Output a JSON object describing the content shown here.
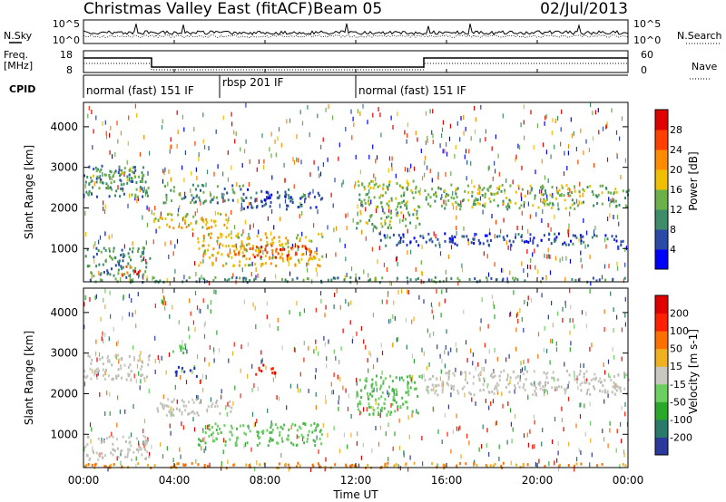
{
  "header": {
    "station": "Christmas Valley East (fitACF)",
    "beam": "Beam 05",
    "date": "02/Jul/2013"
  },
  "left_labels": {
    "nsky": "N.Sky",
    "freq": "Freq.",
    "freq_unit": "[MHz]",
    "cpid": "CPID"
  },
  "right_labels": {
    "nsearch": "N.Search",
    "nave": "Nave"
  },
  "noise_axis": {
    "top": "10^5",
    "bottom": "10^0"
  },
  "freq_axis": {
    "left_ticks": [
      "18",
      "8"
    ],
    "right_ticks": [
      "60",
      "0"
    ]
  },
  "cpid_segments": [
    {
      "label": "normal (fast) 151 IF",
      "start_h": 0,
      "end_h": 6
    },
    {
      "label": "rbsp 201 IF",
      "start_h": 6,
      "end_h": 12
    },
    {
      "label": "normal (fast) 151 IF",
      "start_h": 12,
      "end_h": 24
    }
  ],
  "x_axis": {
    "label": "Time UT",
    "ticks": [
      "00:00",
      "04:00",
      "08:00",
      "12:00",
      "16:00",
      "20:00",
      "00:00"
    ]
  },
  "chart_data": [
    {
      "type": "heatmap",
      "title": "Power",
      "ylabel": "Slant Range [km]",
      "y_ticks": [
        1000,
        2000,
        3000,
        4000
      ],
      "ylim": [
        180,
        4600
      ],
      "x_range_hours": [
        0,
        24
      ],
      "colorbar": {
        "label": "Power [dB]",
        "ticks": [
          "4",
          "8",
          "12",
          "16",
          "20",
          "24",
          "28"
        ],
        "colors": [
          "#0000ff",
          "#2a4aa8",
          "#3d8c6a",
          "#6cb04a",
          "#f0c000",
          "#ff8c00",
          "#ff4000",
          "#e00000"
        ]
      },
      "regions": [
        {
          "t": [
            0.0,
            2.9
          ],
          "r": [
            2300,
            3100
          ],
          "level": 2
        },
        {
          "t": [
            0.2,
            2.6
          ],
          "r": [
            2650,
            2950
          ],
          "level": 3
        },
        {
          "t": [
            0.0,
            2.9
          ],
          "r": [
            350,
            1050
          ],
          "level": 2
        },
        {
          "t": [
            1.5,
            2.5
          ],
          "r": [
            350,
            600
          ],
          "level": 6
        },
        {
          "t": [
            3.0,
            6.5
          ],
          "r": [
            1500,
            1900
          ],
          "level": 4
        },
        {
          "t": [
            5.0,
            10.5
          ],
          "r": [
            600,
            1400
          ],
          "level": 4
        },
        {
          "t": [
            6.5,
            10.0
          ],
          "r": [
            800,
            1150
          ],
          "level": 6
        },
        {
          "t": [
            3.5,
            7.0
          ],
          "r": [
            2150,
            2600
          ],
          "level": 2
        },
        {
          "t": [
            7.0,
            10.5
          ],
          "r": [
            2000,
            2500
          ],
          "level": 1
        },
        {
          "t": [
            12.0,
            14.8
          ],
          "r": [
            1500,
            2700
          ],
          "level": 3
        },
        {
          "t": [
            15.0,
            24.0
          ],
          "r": [
            2000,
            2600
          ],
          "level": 3
        },
        {
          "t": [
            13.0,
            24.0
          ],
          "r": [
            1100,
            1400
          ],
          "level": 1
        },
        {
          "t": [
            0.0,
            24.0
          ],
          "r": [
            200,
            320
          ],
          "level": 2
        }
      ]
    },
    {
      "type": "heatmap",
      "title": "Velocity",
      "ylabel": "Slant Range [km]",
      "y_ticks": [
        1000,
        2000,
        3000,
        4000
      ],
      "ylim": [
        180,
        4600
      ],
      "x_range_hours": [
        0,
        24
      ],
      "colorbar": {
        "label": "Velocity [m s-1]",
        "ticks": [
          "200",
          "100",
          "50",
          "15",
          "-15",
          "-50",
          "-100",
          "-200"
        ],
        "colors": [
          "#2a3a9c",
          "#2a7a6a",
          "#2aa82a",
          "#6cd060",
          "#c8c8c0",
          "#f0b020",
          "#ff7000",
          "#ff2000",
          "#e00000"
        ]
      },
      "regions": [
        {
          "t": [
            0.0,
            2.9
          ],
          "r": [
            2350,
            3000
          ],
          "v": "gray"
        },
        {
          "t": [
            0.0,
            2.9
          ],
          "r": [
            400,
            1000
          ],
          "v": "gray"
        },
        {
          "t": [
            3.0,
            6.5
          ],
          "r": [
            1500,
            1900
          ],
          "v": "gray"
        },
        {
          "t": [
            4.0,
            5.0
          ],
          "r": [
            2450,
            2700
          ],
          "v": "blue"
        },
        {
          "t": [
            3.8,
            4.5
          ],
          "r": [
            3000,
            3300
          ],
          "v": "green"
        },
        {
          "t": [
            5.0,
            10.5
          ],
          "r": [
            750,
            1300
          ],
          "v": "green"
        },
        {
          "t": [
            7.5,
            8.5
          ],
          "r": [
            2500,
            2750
          ],
          "v": "red"
        },
        {
          "t": [
            12.0,
            14.8
          ],
          "r": [
            1500,
            2500
          ],
          "v": "green"
        },
        {
          "t": [
            15.0,
            24.0
          ],
          "r": [
            2000,
            2600
          ],
          "v": "gray"
        },
        {
          "t": [
            0.0,
            24.0
          ],
          "r": [
            200,
            320
          ],
          "v": "orange"
        }
      ]
    }
  ]
}
